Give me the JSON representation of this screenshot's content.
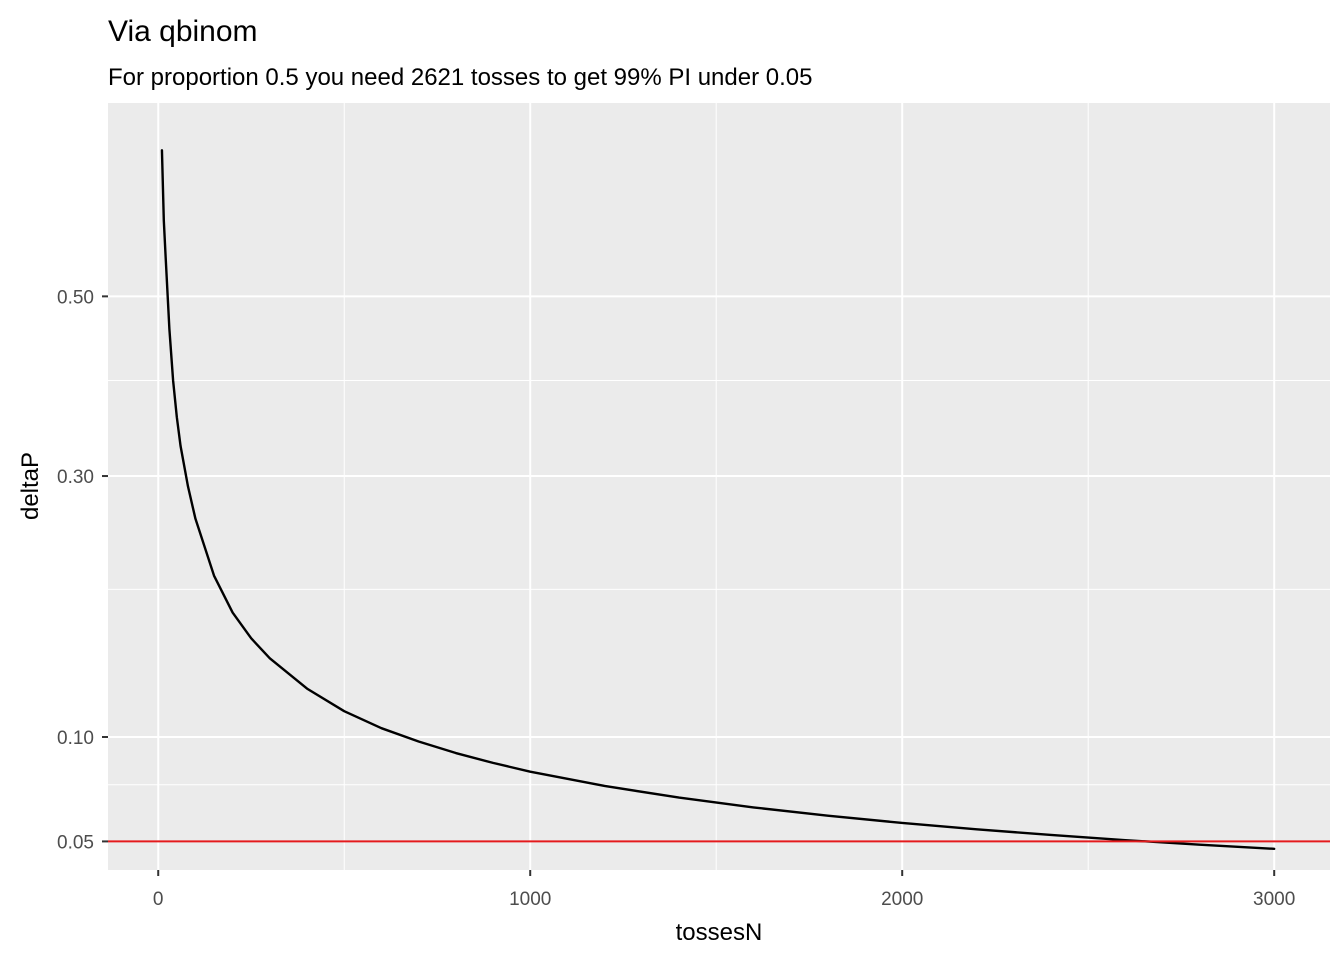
{
  "chart_data": {
    "type": "line",
    "title": "Via qbinom",
    "subtitle": "For proportion 0.5 you need 2621 tosses to get 99% PI under 0.05",
    "xlabel": "tossesN",
    "ylabel": "deltaP",
    "y_scale": "sqrt",
    "xlim": [
      -135,
      3150
    ],
    "ylim": [
      0.0393,
      0.772
    ],
    "x_ticks": [
      0,
      1000,
      2000,
      3000
    ],
    "x_tick_labels": [
      "0",
      "1000",
      "2000",
      "3000"
    ],
    "y_ticks": [
      0.05,
      0.1,
      0.3,
      0.5
    ],
    "y_tick_labels": [
      "0.05",
      "0.10",
      "0.30",
      "0.50"
    ],
    "x_minor_ticks": [
      500,
      1500,
      2500
    ],
    "y_minor_ticks": [
      0.075,
      0.2,
      0.4
    ],
    "grid": true,
    "background": "#ebebeb",
    "series": [
      {
        "color": "#000000",
        "x": [
          10,
          15,
          20,
          30,
          40,
          50,
          60,
          80,
          100,
          150,
          200,
          250,
          300,
          400,
          500,
          600,
          700,
          800,
          900,
          1000,
          1200,
          1400,
          1600,
          1800,
          2000,
          2200,
          2400,
          2600,
          2800,
          3000
        ],
        "y": [
          0.7,
          0.6,
          0.55,
          0.46,
          0.4,
          0.36,
          0.33,
          0.29,
          0.26,
          0.211,
          0.182,
          0.163,
          0.149,
          0.129,
          0.115,
          0.105,
          0.0975,
          0.0912,
          0.086,
          0.0815,
          0.0744,
          0.0689,
          0.0644,
          0.0607,
          0.0576,
          0.0549,
          0.0526,
          0.0505,
          0.0487,
          0.0471
        ]
      }
    ],
    "reference_lines": [
      {
        "axis": "y",
        "value": 0.05,
        "color": "#e41a1c"
      }
    ]
  }
}
